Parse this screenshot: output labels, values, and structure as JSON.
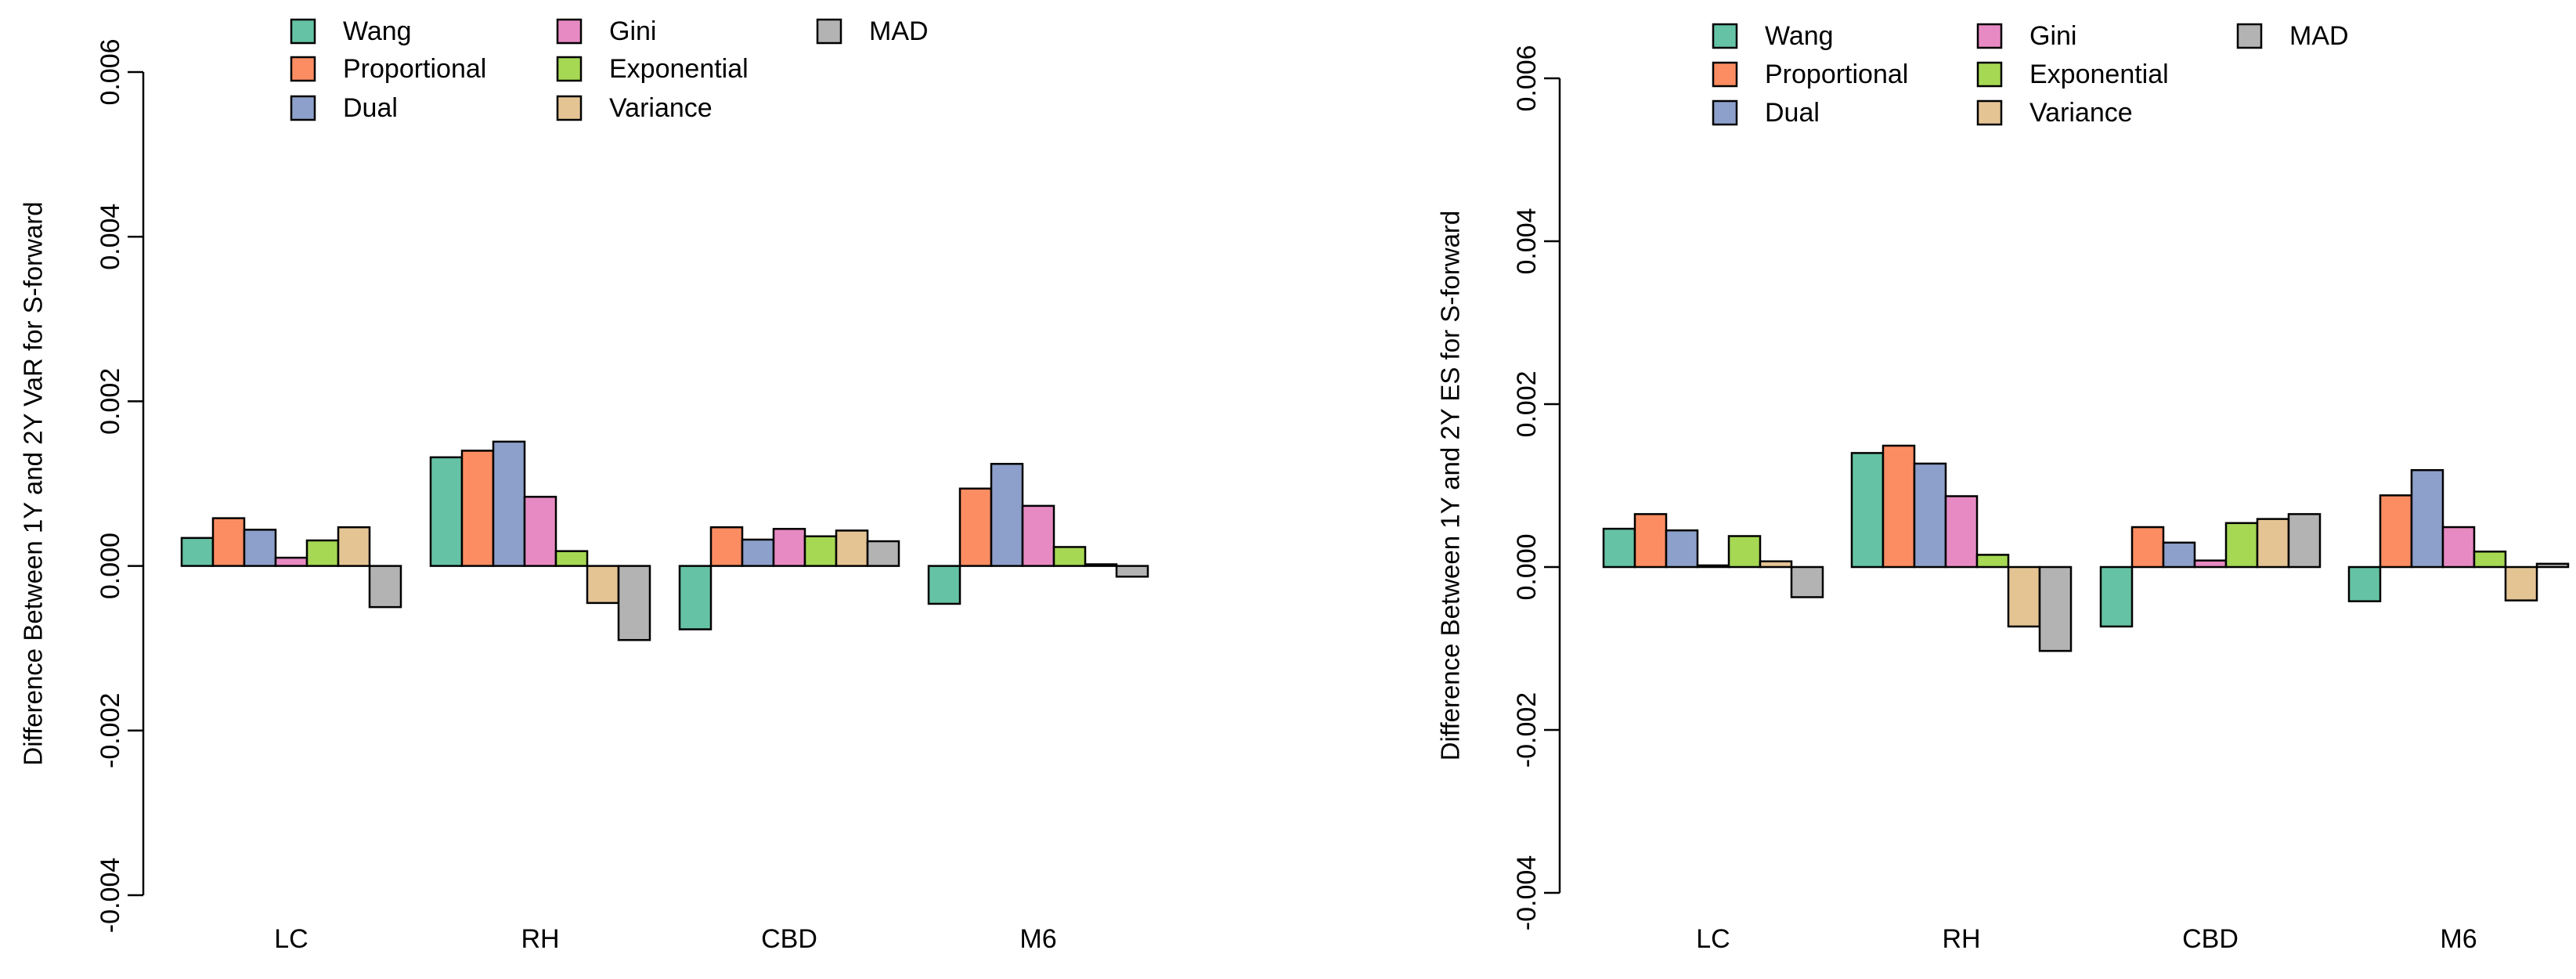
{
  "chart_data": [
    {
      "type": "bar",
      "title": "",
      "xlabel": "",
      "ylabel": "Difference Between 1Y and 2Y VaR for S-forward",
      "categories": [
        "LC",
        "RH",
        "CBD",
        "M6"
      ],
      "ylim": [
        -0.004,
        0.006
      ],
      "yticks": [
        "-0.004",
        "-0.002",
        "0.000",
        "0.002",
        "0.004",
        "0.006"
      ],
      "legend_position": "top",
      "grid": false,
      "series": [
        {
          "name": "Wang",
          "color": "#66C2A5",
          "values": [
            0.00034,
            0.00132,
            -0.00077,
            -0.00046
          ]
        },
        {
          "name": "Proportional",
          "color": "#FC8D62",
          "values": [
            0.00058,
            0.0014,
            0.00047,
            0.00094
          ]
        },
        {
          "name": "Dual",
          "color": "#8DA0CB",
          "values": [
            0.00044,
            0.00151,
            0.00032,
            0.00124
          ]
        },
        {
          "name": "Gini",
          "color": "#E78AC3",
          "values": [
            0.0001,
            0.00084,
            0.00045,
            0.00073
          ]
        },
        {
          "name": "Exponential",
          "color": "#A6D854",
          "values": [
            0.00031,
            0.00018,
            0.00036,
            0.00023
          ]
        },
        {
          "name": "Variance",
          "color": "#E5C494",
          "values": [
            0.00047,
            -0.00045,
            0.00043,
            2e-05
          ]
        },
        {
          "name": "MAD",
          "color": "#B3B3B3",
          "values": [
            -0.0005,
            -0.0009,
            0.0003,
            -0.00013
          ]
        }
      ]
    },
    {
      "type": "bar",
      "title": "",
      "xlabel": "",
      "ylabel": "Difference Between 1Y and 2Y ES for S-forward",
      "categories": [
        "LC",
        "RH",
        "CBD",
        "M6"
      ],
      "ylim": [
        -0.004,
        0.006
      ],
      "yticks": [
        "-0.004",
        "-0.002",
        "0.000",
        "0.002",
        "0.004",
        "0.006"
      ],
      "legend_position": "top",
      "grid": false,
      "series": [
        {
          "name": "Wang",
          "color": "#66C2A5",
          "values": [
            0.00047,
            0.0014,
            -0.00073,
            -0.00042
          ]
        },
        {
          "name": "Proportional",
          "color": "#FC8D62",
          "values": [
            0.00065,
            0.00149,
            0.00049,
            0.00088
          ]
        },
        {
          "name": "Dual",
          "color": "#8DA0CB",
          "values": [
            0.00045,
            0.00127,
            0.0003,
            0.00119
          ]
        },
        {
          "name": "Gini",
          "color": "#E78AC3",
          "values": [
            2e-05,
            0.00087,
            8e-05,
            0.00049
          ]
        },
        {
          "name": "Exponential",
          "color": "#A6D854",
          "values": [
            0.00038,
            0.00015,
            0.00054,
            0.00019
          ]
        },
        {
          "name": "Variance",
          "color": "#E5C494",
          "values": [
            7e-05,
            -0.00073,
            0.00059,
            -0.00041
          ]
        },
        {
          "name": "MAD",
          "color": "#B3B3B3",
          "values": [
            -0.00037,
            -0.00103,
            0.00065,
            4e-05
          ]
        }
      ]
    }
  ]
}
